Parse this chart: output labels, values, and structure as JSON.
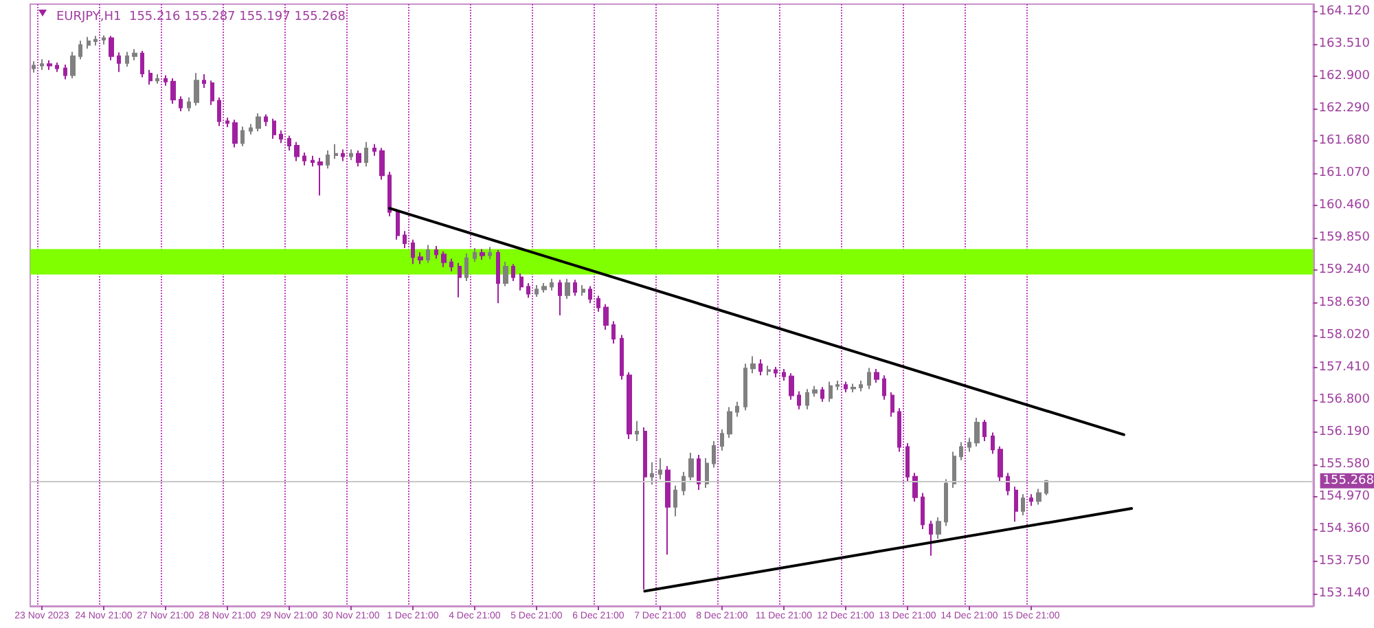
{
  "chart_data": {
    "type": "candlestick",
    "title": "EURJPY,H1  155.216 155.287 155.197 155.268",
    "categories": [
      null,
      "23 Nov 2023",
      null,
      null,
      null,
      null,
      null,
      null,
      null,
      "24 Nov 21:00",
      null,
      null,
      null,
      null,
      null,
      null,
      null,
      "27 Nov 21:00",
      null,
      null,
      null,
      null,
      null,
      null,
      null,
      "28 Nov 21:00",
      null,
      null,
      null,
      null,
      null,
      null,
      null,
      "29 Nov 21:00",
      null,
      null,
      null,
      null,
      null,
      null,
      null,
      "30 Nov 21:00",
      null,
      null,
      null,
      null,
      null,
      null,
      null,
      "1 Dec 21:00",
      null,
      null,
      null,
      null,
      null,
      null,
      null,
      "4 Dec 21:00",
      null,
      null,
      null,
      null,
      null,
      null,
      null,
      "5 Dec 21:00",
      null,
      null,
      null,
      null,
      null,
      null,
      null,
      "6 Dec 21:00",
      null,
      null,
      null,
      null,
      null,
      null,
      null,
      "7 Dec 21:00",
      null,
      null,
      null,
      null,
      null,
      null,
      null,
      "8 Dec 21:00",
      null,
      null,
      null,
      null,
      null,
      null,
      null,
      "11 Dec 21:00",
      null,
      null,
      null,
      null,
      null,
      null,
      null,
      "12 Dec 21:00",
      null,
      null,
      null,
      null,
      null,
      null,
      null,
      "13 Dec 21:00",
      null,
      null,
      null,
      null,
      null,
      null,
      null,
      "14 Dec 21:00",
      null,
      null,
      null,
      null,
      null,
      null,
      null,
      "15 Dec 21:00",
      null,
      null,
      null,
      null,
      null,
      null,
      null,
      null,
      null,
      null,
      null,
      null,
      null,
      null,
      null,
      null,
      null,
      null,
      null,
      null,
      null,
      null,
      null,
      null,
      null,
      null,
      null,
      null,
      null,
      null,
      null,
      null,
      null,
      null,
      null,
      null
    ],
    "series": [
      {
        "type": "candlestick",
        "ohlc": [
          [
            163.05,
            163.18,
            162.97,
            163.1
          ],
          [
            163.1,
            163.22,
            163.02,
            163.13
          ],
          [
            163.13,
            163.2,
            163.02,
            163.1
          ],
          [
            163.1,
            163.16,
            162.98,
            163.05
          ],
          [
            163.05,
            163.12,
            162.84,
            162.92
          ],
          [
            162.92,
            163.36,
            162.86,
            163.28
          ],
          [
            163.28,
            163.57,
            163.22,
            163.49
          ],
          [
            163.49,
            163.64,
            163.42,
            163.56
          ],
          [
            163.56,
            163.66,
            163.48,
            163.59
          ],
          [
            163.59,
            163.67,
            163.5,
            163.62
          ],
          [
            163.62,
            163.66,
            163.2,
            163.28
          ],
          [
            163.28,
            163.35,
            162.98,
            163.15
          ],
          [
            163.15,
            163.36,
            163.08,
            163.28
          ],
          [
            163.28,
            163.41,
            163.2,
            163.33
          ],
          [
            163.33,
            163.38,
            162.88,
            162.95
          ],
          [
            162.95,
            163.02,
            162.74,
            162.82
          ],
          [
            162.82,
            162.94,
            162.76,
            162.85
          ],
          [
            162.85,
            162.92,
            162.72,
            162.8
          ],
          [
            162.8,
            162.86,
            162.38,
            162.46
          ],
          [
            162.46,
            162.52,
            162.24,
            162.31
          ],
          [
            162.31,
            162.5,
            162.24,
            162.41
          ],
          [
            162.41,
            162.96,
            162.35,
            162.82
          ],
          [
            162.82,
            162.94,
            162.68,
            162.77
          ],
          [
            162.77,
            162.82,
            162.36,
            162.44
          ],
          [
            162.44,
            162.5,
            161.96,
            162.05
          ],
          [
            162.05,
            162.12,
            161.94,
            162.02
          ],
          [
            162.02,
            162.08,
            161.56,
            161.64
          ],
          [
            161.64,
            161.95,
            161.58,
            161.87
          ],
          [
            161.87,
            162.0,
            161.8,
            161.92
          ],
          [
            161.92,
            162.2,
            161.86,
            162.13
          ],
          [
            162.13,
            162.18,
            161.96,
            162.05
          ],
          [
            162.05,
            162.1,
            161.72,
            161.8
          ],
          [
            161.8,
            161.88,
            161.64,
            161.72
          ],
          [
            161.72,
            161.78,
            161.5,
            161.59
          ],
          [
            161.59,
            161.66,
            161.3,
            161.39
          ],
          [
            161.39,
            161.46,
            161.22,
            161.31
          ],
          [
            161.31,
            161.4,
            161.2,
            161.28
          ],
          [
            161.28,
            161.36,
            160.65,
            161.23
          ],
          [
            161.23,
            161.5,
            161.16,
            161.41
          ],
          [
            161.41,
            161.62,
            161.34,
            161.44
          ],
          [
            161.44,
            161.52,
            161.3,
            161.39
          ],
          [
            161.39,
            161.52,
            161.32,
            161.44
          ],
          [
            161.44,
            161.5,
            161.2,
            161.28
          ],
          [
            161.28,
            161.66,
            161.2,
            161.54
          ],
          [
            161.54,
            161.62,
            161.4,
            161.49
          ],
          [
            161.49,
            161.55,
            160.95,
            161.03
          ],
          [
            161.03,
            161.1,
            160.26,
            160.34
          ],
          [
            160.34,
            160.4,
            159.82,
            159.9
          ],
          [
            159.9,
            159.98,
            159.66,
            159.75
          ],
          [
            159.75,
            159.82,
            159.36,
            159.49
          ],
          [
            159.49,
            159.58,
            159.36,
            159.44
          ],
          [
            159.44,
            159.72,
            159.38,
            159.62
          ],
          [
            159.62,
            159.7,
            159.46,
            159.54
          ],
          [
            159.54,
            159.6,
            159.3,
            159.39
          ],
          [
            159.39,
            159.46,
            159.22,
            159.31
          ],
          [
            159.31,
            159.38,
            158.73,
            159.11
          ],
          [
            159.11,
            159.56,
            159.04,
            159.47
          ],
          [
            159.47,
            159.66,
            159.4,
            159.57
          ],
          [
            159.57,
            159.64,
            159.44,
            159.52
          ],
          [
            159.52,
            159.68,
            159.45,
            159.57
          ],
          [
            159.57,
            159.62,
            158.62,
            159.0
          ],
          [
            159.0,
            159.4,
            158.94,
            159.31
          ],
          [
            159.31,
            159.36,
            159.04,
            159.11
          ],
          [
            159.11,
            159.18,
            158.86,
            158.93
          ],
          [
            158.93,
            159.0,
            158.72,
            158.8
          ],
          [
            158.8,
            158.96,
            158.74,
            158.88
          ],
          [
            158.88,
            159.0,
            158.82,
            158.93
          ],
          [
            158.93,
            159.08,
            158.86,
            159.0
          ],
          [
            159.0,
            159.06,
            158.39,
            158.77
          ],
          [
            158.77,
            159.08,
            158.7,
            159.0
          ],
          [
            159.0,
            159.06,
            158.76,
            158.83
          ],
          [
            158.83,
            158.96,
            158.76,
            158.88
          ],
          [
            158.88,
            158.94,
            158.62,
            158.7
          ],
          [
            158.7,
            158.76,
            158.46,
            158.54
          ],
          [
            158.54,
            158.6,
            158.12,
            158.21
          ],
          [
            158.21,
            158.28,
            157.86,
            157.95
          ],
          [
            157.95,
            158.02,
            157.18,
            157.26
          ],
          [
            157.26,
            157.32,
            156.06,
            156.16
          ],
          [
            156.16,
            156.4,
            156.02,
            156.2
          ],
          [
            156.2,
            156.28,
            153.22,
            155.35
          ],
          [
            155.35,
            155.62,
            155.2,
            155.4
          ],
          [
            155.4,
            155.7,
            155.3,
            155.47
          ],
          [
            155.47,
            155.55,
            153.88,
            154.78
          ],
          [
            154.78,
            155.18,
            154.6,
            155.09
          ],
          [
            155.09,
            155.44,
            155.0,
            155.35
          ],
          [
            155.35,
            155.8,
            155.28,
            155.68
          ],
          [
            155.68,
            155.76,
            155.1,
            155.22
          ],
          [
            155.22,
            155.7,
            155.14,
            155.6
          ],
          [
            155.6,
            156.02,
            155.52,
            155.93
          ],
          [
            155.93,
            156.24,
            155.84,
            156.16
          ],
          [
            156.16,
            156.66,
            156.08,
            156.57
          ],
          [
            156.57,
            156.76,
            156.48,
            156.67
          ],
          [
            156.67,
            157.48,
            156.6,
            157.39
          ],
          [
            157.39,
            157.62,
            157.3,
            157.47
          ],
          [
            157.47,
            157.56,
            157.26,
            157.34
          ],
          [
            157.34,
            157.44,
            157.26,
            157.36
          ],
          [
            157.36,
            157.42,
            157.22,
            157.31
          ],
          [
            157.31,
            157.38,
            157.16,
            157.24
          ],
          [
            157.24,
            157.3,
            156.8,
            156.88
          ],
          [
            156.88,
            156.96,
            156.62,
            156.7
          ],
          [
            156.7,
            157.0,
            156.62,
            156.93
          ],
          [
            156.93,
            157.06,
            156.86,
            156.98
          ],
          [
            156.98,
            157.04,
            156.76,
            156.83
          ],
          [
            156.83,
            157.14,
            156.76,
            157.06
          ],
          [
            157.06,
            157.16,
            156.98,
            157.08
          ],
          [
            157.08,
            157.14,
            156.94,
            157.01
          ],
          [
            157.01,
            157.1,
            156.94,
            157.03
          ],
          [
            157.03,
            157.16,
            156.96,
            157.08
          ],
          [
            157.08,
            157.4,
            157.0,
            157.31
          ],
          [
            157.31,
            157.38,
            157.12,
            157.19
          ],
          [
            157.19,
            157.26,
            156.8,
            156.88
          ],
          [
            156.88,
            156.94,
            156.48,
            156.57
          ],
          [
            156.57,
            156.64,
            155.82,
            155.91
          ],
          [
            155.91,
            155.98,
            155.26,
            155.35
          ],
          [
            155.35,
            155.42,
            154.88,
            154.96
          ],
          [
            154.96,
            155.04,
            154.36,
            154.45
          ],
          [
            154.45,
            154.52,
            153.86,
            154.27
          ],
          [
            154.27,
            154.58,
            154.18,
            154.5
          ],
          [
            154.5,
            155.3,
            154.42,
            155.22
          ],
          [
            155.22,
            155.82,
            155.14,
            155.73
          ],
          [
            155.73,
            156.0,
            155.66,
            155.91
          ],
          [
            155.91,
            156.08,
            155.82,
            155.99
          ],
          [
            155.99,
            156.46,
            155.92,
            156.37
          ],
          [
            156.37,
            156.42,
            156.02,
            156.11
          ],
          [
            156.11,
            156.18,
            155.78,
            155.86
          ],
          [
            155.86,
            155.92,
            155.26,
            155.35
          ],
          [
            155.35,
            155.42,
            155.0,
            155.09
          ],
          [
            155.09,
            155.16,
            154.5,
            154.7
          ],
          [
            154.7,
            155.02,
            154.62,
            154.94
          ],
          [
            154.94,
            155.02,
            154.8,
            154.89
          ],
          [
            154.89,
            155.12,
            154.82,
            155.04
          ],
          [
            155.04,
            155.287,
            155.0,
            155.268
          ],
          null,
          null,
          null,
          null,
          null,
          null,
          null,
          null,
          null,
          null,
          null,
          null,
          null,
          null,
          null,
          null,
          null,
          null,
          null,
          null,
          null,
          null,
          null,
          null,
          null,
          null,
          null,
          null,
          null,
          null,
          null,
          null,
          null,
          null
        ],
        "colors": [
          "#808080",
          "#808080",
          "#a020a0",
          "#a020a0",
          "#a020a0",
          "#808080",
          "#808080",
          "#808080",
          "#808080",
          "#808080",
          "#a020a0",
          "#a020a0",
          "#808080",
          "#808080",
          "#a020a0",
          "#a020a0",
          "#808080",
          "#a020a0",
          "#a020a0",
          "#a020a0",
          "#808080",
          "#808080",
          "#a020a0",
          "#a020a0",
          "#a020a0",
          "#a020a0",
          "#a020a0",
          "#808080",
          "#808080",
          "#808080",
          "#a020a0",
          "#a020a0",
          "#a020a0",
          "#a020a0",
          "#a020a0",
          "#a020a0",
          "#a020a0",
          "#a020a0",
          "#808080",
          "#808080",
          "#a020a0",
          "#808080",
          "#a020a0",
          "#808080",
          "#a020a0",
          "#a020a0",
          "#a020a0",
          "#a020a0",
          "#a020a0",
          "#a020a0",
          "#a020a0",
          "#808080",
          "#a020a0",
          "#a020a0",
          "#a020a0",
          "#a020a0",
          "#808080",
          "#808080",
          "#a020a0",
          "#808080",
          "#a020a0",
          "#808080",
          "#a020a0",
          "#a020a0",
          "#a020a0",
          "#808080",
          "#808080",
          "#808080",
          "#a020a0",
          "#808080",
          "#a020a0",
          "#808080",
          "#a020a0",
          "#a020a0",
          "#a020a0",
          "#a020a0",
          "#a020a0",
          "#a020a0",
          "#808080",
          "#a020a0",
          "#808080",
          "#808080",
          "#a020a0",
          "#808080",
          "#808080",
          "#808080",
          "#a020a0",
          "#808080",
          "#808080",
          "#808080",
          "#808080",
          "#808080",
          "#808080",
          "#808080",
          "#a020a0",
          "#808080",
          "#a020a0",
          "#a020a0",
          "#a020a0",
          "#a020a0",
          "#808080",
          "#808080",
          "#a020a0",
          "#808080",
          "#808080",
          "#a020a0",
          "#808080",
          "#808080",
          "#808080",
          "#a020a0",
          "#a020a0",
          "#a020a0",
          "#a020a0",
          "#a020a0",
          "#a020a0",
          "#a020a0",
          "#a020a0",
          "#808080",
          "#808080",
          "#808080",
          "#808080",
          "#808080",
          "#808080",
          "#a020a0",
          "#a020a0",
          "#a020a0",
          "#a020a0",
          "#a020a0",
          "#808080",
          "#a020a0",
          "#808080",
          "#808080",
          null,
          null,
          null,
          null,
          null,
          null,
          null,
          null,
          null,
          null,
          null,
          null,
          null,
          null,
          null,
          null,
          null,
          null,
          null,
          null,
          null,
          null,
          null,
          null,
          null,
          null,
          null,
          null,
          null,
          null,
          null,
          null,
          null,
          null
        ]
      },
      {
        "type": "line",
        "color": "#000000",
        "values": [
          null,
          null,
          null,
          null,
          null,
          null,
          null,
          null,
          null,
          null,
          null,
          null,
          null,
          null,
          null,
          null,
          null,
          null,
          null,
          null,
          null,
          null,
          null,
          null,
          null,
          null,
          null,
          null,
          null,
          null,
          null,
          null,
          null,
          null,
          null,
          null,
          null,
          null,
          null,
          null,
          null,
          null,
          null,
          null,
          null,
          null,
          160.41,
          null,
          null,
          null,
          null,
          null,
          null,
          null,
          null,
          null,
          null,
          null,
          null,
          null,
          null,
          null,
          null,
          null,
          null,
          null,
          null,
          null,
          null,
          null,
          null,
          null,
          null,
          null,
          null,
          null,
          null,
          null,
          null,
          null,
          null,
          null,
          null,
          null,
          null,
          null,
          null,
          null,
          null,
          null,
          null,
          null,
          null,
          null,
          null,
          null,
          null,
          null,
          null,
          null,
          null,
          null,
          null,
          null,
          null,
          null,
          null,
          null,
          null,
          null,
          null,
          null,
          null,
          null,
          null,
          null,
          null,
          null,
          null,
          null,
          null,
          null,
          null,
          null,
          null,
          null,
          null,
          null,
          null,
          null,
          null,
          null,
          null,
          null,
          null,
          null,
          null,
          null,
          null,
          null,
          null,
          156.14,
          null,
          null,
          null,
          null,
          null,
          null,
          null,
          null,
          null,
          null,
          null,
          null,
          null,
          null,
          null,
          null,
          null,
          null,
          null,
          null,
          null,
          null,
          null,
          null
        ]
      },
      {
        "type": "line",
        "color": "#000000",
        "values": [
          null,
          null,
          null,
          null,
          null,
          null,
          null,
          null,
          null,
          null,
          null,
          null,
          null,
          null,
          null,
          null,
          null,
          null,
          null,
          null,
          null,
          null,
          null,
          null,
          null,
          null,
          null,
          null,
          null,
          null,
          null,
          null,
          null,
          null,
          null,
          null,
          null,
          null,
          null,
          null,
          null,
          null,
          null,
          null,
          null,
          null,
          null,
          null,
          null,
          null,
          null,
          null,
          null,
          null,
          null,
          null,
          null,
          null,
          null,
          null,
          null,
          null,
          null,
          null,
          null,
          null,
          null,
          null,
          null,
          null,
          null,
          null,
          null,
          null,
          null,
          null,
          null,
          null,
          null,
          153.19,
          null,
          null,
          null,
          null,
          null,
          null,
          null,
          null,
          null,
          null,
          null,
          null,
          null,
          null,
          null,
          null,
          null,
          null,
          null,
          null,
          null,
          null,
          null,
          null,
          null,
          null,
          null,
          null,
          null,
          null,
          null,
          null,
          null,
          null,
          null,
          null,
          null,
          null,
          null,
          null,
          null,
          null,
          null,
          null,
          null,
          null,
          null,
          null,
          null,
          null,
          null,
          null,
          null,
          null,
          null,
          null,
          null,
          null,
          null,
          null,
          null,
          null,
          154.75,
          null,
          null,
          null,
          null,
          null,
          null,
          null,
          null,
          null,
          null,
          null,
          null,
          null,
          null,
          null,
          null,
          null,
          null,
          null,
          null,
          null,
          null,
          null
        ]
      }
    ],
    "ylim": [
      152.91,
      164.26
    ],
    "yticks": [
      {
        "value": 153.14,
        "label": "153.140"
      },
      {
        "value": 153.75,
        "label": "153.750"
      },
      {
        "value": 154.36,
        "label": "154.360"
      },
      {
        "value": 154.97,
        "label": "154.970"
      },
      {
        "value": 155.58,
        "label": "155.580"
      },
      {
        "value": 156.19,
        "label": "156.190"
      },
      {
        "value": 156.8,
        "label": "156.800"
      },
      {
        "value": 157.41,
        "label": "157.410"
      },
      {
        "value": 158.02,
        "label": "158.020"
      },
      {
        "value": 158.63,
        "label": "158.630"
      },
      {
        "value": 159.24,
        "label": "159.240"
      },
      {
        "value": 159.85,
        "label": "159.850"
      },
      {
        "value": 160.46,
        "label": "160.460"
      },
      {
        "value": 161.07,
        "label": "161.070"
      },
      {
        "value": 161.68,
        "label": "161.680"
      },
      {
        "value": 162.29,
        "label": "162.290"
      },
      {
        "value": 162.9,
        "label": "162.900"
      },
      {
        "value": 163.51,
        "label": "163.510"
      },
      {
        "value": 164.12,
        "label": "164.120"
      }
    ],
    "grid": "x",
    "ref_lines": [
      {
        "axis": "y",
        "value": 155.268,
        "label": "155.268",
        "color": "#c8c8c8"
      }
    ],
    "bands": [
      {
        "axis": "y",
        "from": 159.16,
        "to": 159.64,
        "color": "#7fff00"
      }
    ]
  }
}
